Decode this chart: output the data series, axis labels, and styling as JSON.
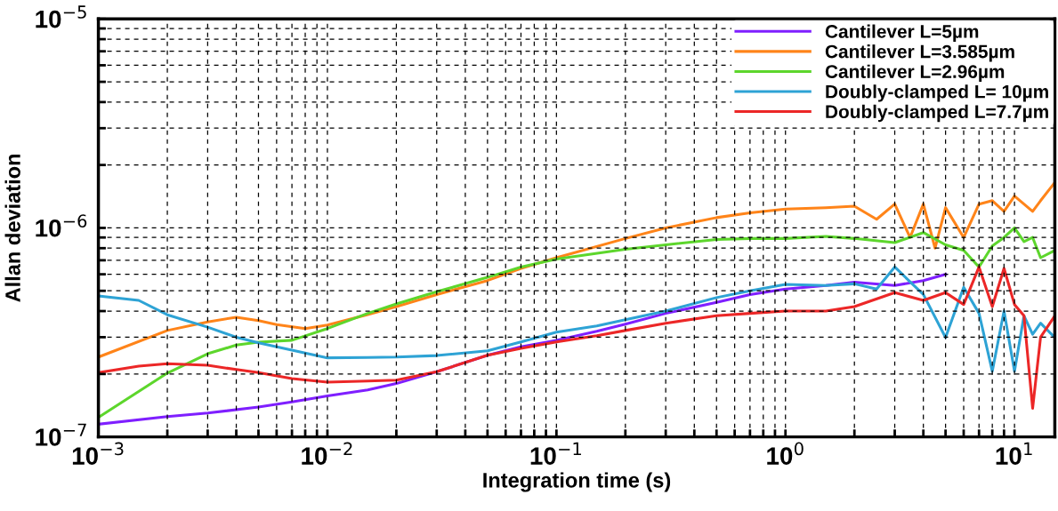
{
  "chart_data": {
    "type": "line",
    "xlabel": "Integration time (s)",
    "ylabel": "Allan deviation",
    "log": "xy",
    "grid": true,
    "legend": "top right",
    "line_style": "solid",
    "marker": "none",
    "xlim": [
      0.001,
      15
    ],
    "ylim": [
      1e-07,
      1e-05
    ],
    "xticks": [
      {
        "value": 0.001,
        "label": "10$^{−3}$"
      },
      {
        "value": 0.002,
        "label": null
      },
      {
        "value": 0.003,
        "label": null
      },
      {
        "value": 0.004,
        "label": null
      },
      {
        "value": 0.005,
        "label": null
      },
      {
        "value": 0.006,
        "label": null
      },
      {
        "value": 0.007,
        "label": null
      },
      {
        "value": 0.008,
        "label": null
      },
      {
        "value": 0.009,
        "label": null
      },
      {
        "value": 0.01,
        "label": "10$^{−2}$"
      },
      {
        "value": 0.02,
        "label": null
      },
      {
        "value": 0.03,
        "label": null
      },
      {
        "value": 0.04,
        "label": null
      },
      {
        "value": 0.05,
        "label": null
      },
      {
        "value": 0.06,
        "label": null
      },
      {
        "value": 0.07,
        "label": null
      },
      {
        "value": 0.08,
        "label": null
      },
      {
        "value": 0.09,
        "label": null
      },
      {
        "value": 0.1,
        "label": "10$^{−1}$"
      },
      {
        "value": 0.2,
        "label": null
      },
      {
        "value": 0.3,
        "label": null
      },
      {
        "value": 0.4,
        "label": null
      },
      {
        "value": 0.5,
        "label": null
      },
      {
        "value": 0.6,
        "label": null
      },
      {
        "value": 0.7,
        "label": null
      },
      {
        "value": 0.8,
        "label": null
      },
      {
        "value": 0.9,
        "label": null
      },
      {
        "value": 1,
        "label": "10$^{0}$"
      },
      {
        "value": 2,
        "label": null
      },
      {
        "value": 3,
        "label": null
      },
      {
        "value": 4,
        "label": null
      },
      {
        "value": 5,
        "label": null
      },
      {
        "value": 6,
        "label": null
      },
      {
        "value": 7,
        "label": null
      },
      {
        "value": 8,
        "label": null
      },
      {
        "value": 9,
        "label": null
      },
      {
        "value": 10,
        "label": "10$^{1}$"
      }
    ],
    "yticks": [
      {
        "value": 1e-07,
        "label": "10$^{−7}$"
      },
      {
        "value": 2e-07,
        "label": null
      },
      {
        "value": 3e-07,
        "label": null
      },
      {
        "value": 4e-07,
        "label": null
      },
      {
        "value": 5e-07,
        "label": null
      },
      {
        "value": 6e-07,
        "label": null
      },
      {
        "value": 7e-07,
        "label": null
      },
      {
        "value": 8e-07,
        "label": null
      },
      {
        "value": 9e-07,
        "label": null
      },
      {
        "value": 1e-06,
        "label": "10$^{−6}$"
      },
      {
        "value": 2e-06,
        "label": null
      },
      {
        "value": 3e-06,
        "label": null
      },
      {
        "value": 4e-06,
        "label": null
      },
      {
        "value": 5e-06,
        "label": null
      },
      {
        "value": 6e-06,
        "label": null
      },
      {
        "value": 7e-06,
        "label": null
      },
      {
        "value": 8e-06,
        "label": null
      },
      {
        "value": 9e-06,
        "label": null
      },
      {
        "value": 1e-05,
        "label": "10$^{−5}$"
      }
    ],
    "series": [
      {
        "name": "Cantilever L=5µm",
        "color": "#7f1fff",
        "x": [
          0.001,
          0.002,
          0.003,
          0.005,
          0.007,
          0.01,
          0.015,
          0.02,
          0.03,
          0.05,
          0.07,
          0.1,
          0.15,
          0.2,
          0.3,
          0.5,
          0.7,
          1,
          1.5,
          2,
          3,
          4,
          5
        ],
        "values": [
          1.15e-07,
          1.25e-07,
          1.3e-07,
          1.39e-07,
          1.47e-07,
          1.57e-07,
          1.68e-07,
          1.8e-07,
          2.05e-07,
          2.46e-07,
          2.7e-07,
          2.9e-07,
          3.2e-07,
          3.46e-07,
          3.9e-07,
          4.4e-07,
          4.8e-07,
          5.1e-07,
          5.3e-07,
          5.5e-07,
          5.3e-07,
          5.6e-07,
          6e-07
        ]
      },
      {
        "name": "Cantilever L=3.585µm",
        "color": "#ff8419",
        "x": [
          0.001,
          0.002,
          0.003,
          0.004,
          0.005,
          0.006,
          0.008,
          0.01,
          0.015,
          0.02,
          0.03,
          0.05,
          0.07,
          0.1,
          0.2,
          0.3,
          0.5,
          0.7,
          1,
          1.5,
          2,
          2.5,
          3,
          3.5,
          4,
          4.5,
          5,
          6,
          7,
          8,
          9,
          10,
          11,
          12,
          13,
          15
        ],
        "values": [
          2.41e-07,
          3.23e-07,
          3.55e-07,
          3.74e-07,
          3.6e-07,
          3.45e-07,
          3.3e-07,
          3.43e-07,
          3.85e-07,
          4.2e-07,
          4.8e-07,
          5.6e-07,
          6.4e-07,
          7.2e-07,
          8.9e-07,
          1e-06,
          1.12e-06,
          1.18e-06,
          1.23e-06,
          1.25e-06,
          1.27e-06,
          1.1e-06,
          1.3e-06,
          9e-07,
          1.3e-06,
          8e-07,
          1.25e-06,
          9e-07,
          1.3e-06,
          1.35e-06,
          1.2e-06,
          1.42e-06,
          1.3e-06,
          1.2e-06,
          1.35e-06,
          1.65e-06
        ]
      },
      {
        "name": "Cantilever L=2.96µm",
        "color": "#5dd62c",
        "x": [
          0.001,
          0.002,
          0.003,
          0.004,
          0.005,
          0.007,
          0.01,
          0.015,
          0.02,
          0.03,
          0.05,
          0.07,
          0.1,
          0.2,
          0.3,
          0.5,
          0.7,
          1,
          1.5,
          2,
          3,
          4,
          5,
          6,
          7,
          8,
          9,
          10,
          11,
          12,
          13,
          15
        ],
        "values": [
          1.24e-07,
          2.02e-07,
          2.5e-07,
          2.75e-07,
          2.84e-07,
          2.9e-07,
          3.3e-07,
          3.9e-07,
          4.33e-07,
          4.95e-07,
          5.8e-07,
          6.5e-07,
          7.1e-07,
          7.9e-07,
          8.3e-07,
          8.8e-07,
          8.9e-07,
          8.9e-07,
          9.1e-07,
          8.9e-07,
          8.5e-07,
          9.5e-07,
          8.3e-07,
          7.8e-07,
          6.5e-07,
          8.2e-07,
          9e-07,
          1e-06,
          8.6e-07,
          9e-07,
          7.2e-07,
          7.8e-07
        ]
      },
      {
        "name": "Doubly-clamped L= 10µm",
        "color": "#2ea3d5",
        "x": [
          0.001,
          0.0015,
          0.002,
          0.003,
          0.004,
          0.005,
          0.007,
          0.01,
          0.015,
          0.02,
          0.03,
          0.05,
          0.07,
          0.1,
          0.15,
          0.2,
          0.3,
          0.5,
          0.7,
          1,
          1.5,
          2,
          2.5,
          3,
          4,
          5,
          6,
          7,
          8,
          9,
          10,
          11,
          12,
          13,
          15
        ],
        "values": [
          4.73e-07,
          4.5e-07,
          3.84e-07,
          3.35e-07,
          3e-07,
          2.82e-07,
          2.6e-07,
          2.39e-07,
          2.4e-07,
          2.41e-07,
          2.45e-07,
          2.58e-07,
          2.85e-07,
          3.17e-07,
          3.4e-07,
          3.64e-07,
          4e-07,
          4.64e-07,
          5e-07,
          5.37e-07,
          5.3e-07,
          5.4e-07,
          5.1e-07,
          6.5e-07,
          4.8e-07,
          2.99e-07,
          5.2e-07,
          3.9e-07,
          2.06e-07,
          4e-07,
          2.06e-07,
          3.8e-07,
          3.1e-07,
          3.5e-07,
          2.99e-07
        ]
      },
      {
        "name": "Doubly-clamped L=7.7µm",
        "color": "#ec2727",
        "x": [
          0.001,
          0.0015,
          0.002,
          0.003,
          0.004,
          0.005,
          0.007,
          0.01,
          0.015,
          0.02,
          0.03,
          0.05,
          0.07,
          0.1,
          0.15,
          0.2,
          0.3,
          0.5,
          0.7,
          1,
          1.5,
          2,
          3,
          4,
          5,
          6,
          7,
          8,
          9,
          10,
          11,
          12,
          13,
          15
        ],
        "values": [
          2.03e-07,
          2.18e-07,
          2.24e-07,
          2.2e-07,
          2.1e-07,
          2.03e-07,
          1.9e-07,
          1.83e-07,
          1.85e-07,
          1.87e-07,
          2.05e-07,
          2.46e-07,
          2.65e-07,
          2.85e-07,
          3.05e-07,
          3.23e-07,
          3.5e-07,
          3.8e-07,
          3.9e-07,
          4e-07,
          4e-07,
          4.2e-07,
          4.9e-07,
          4.5e-07,
          4.9e-07,
          4.3e-07,
          6.5e-07,
          4.2e-07,
          6.4e-07,
          4.3e-07,
          3.8e-07,
          1.37e-07,
          3e-07,
          3.8e-07
        ]
      }
    ]
  }
}
